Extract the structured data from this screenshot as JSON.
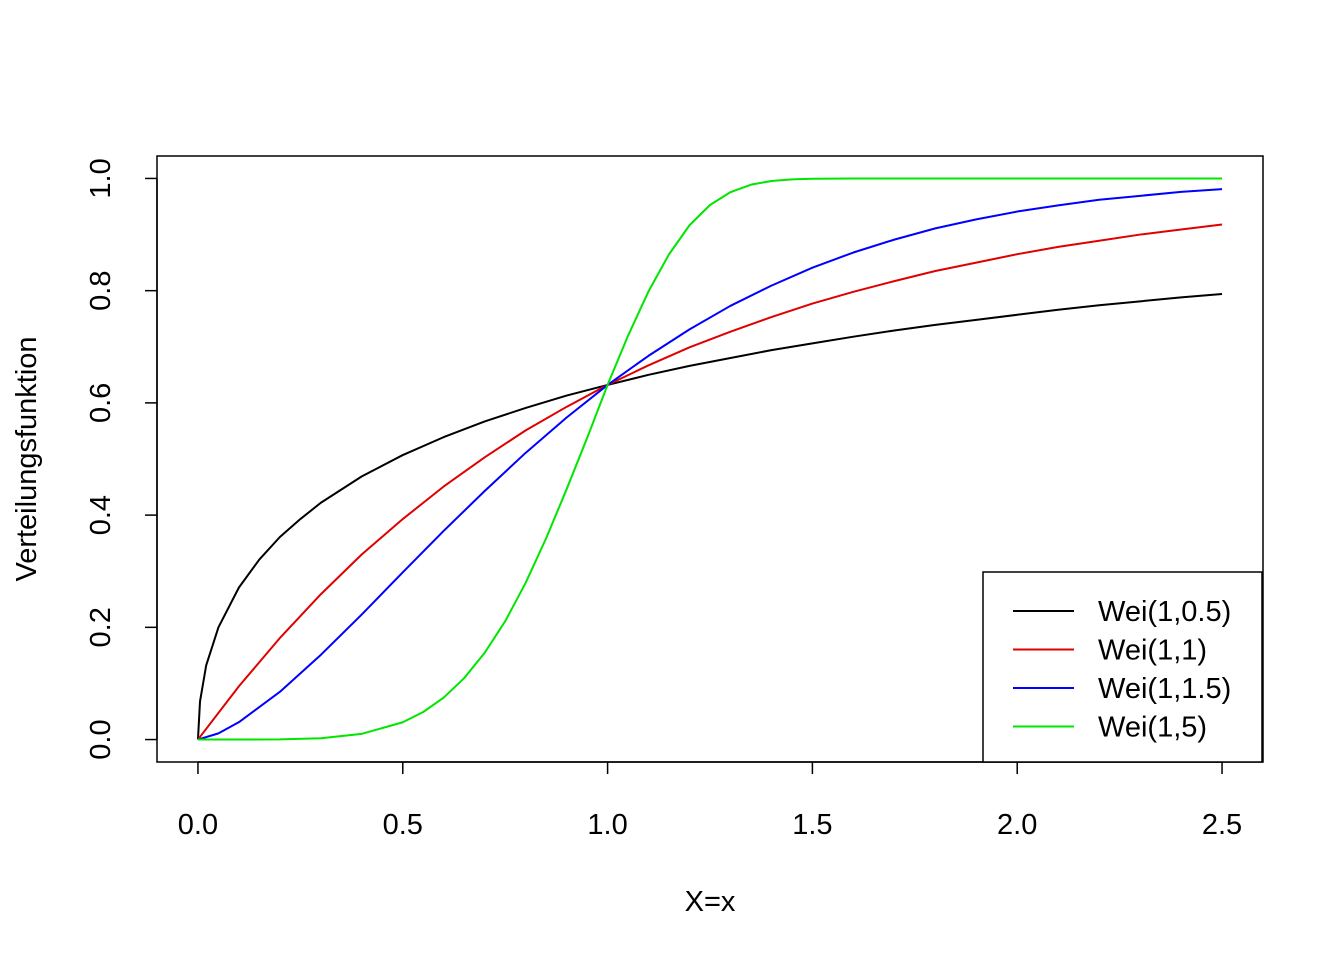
{
  "chart_data": {
    "type": "line",
    "title": "",
    "xlabel": "X=x",
    "ylabel": "Verteilungsfunktion",
    "xlim": [
      -0.1,
      2.6
    ],
    "ylim": [
      -0.04,
      1.04
    ],
    "x_ticks": [
      0.0,
      0.5,
      1.0,
      1.5,
      2.0,
      2.5
    ],
    "x_tick_labels": [
      "0.0",
      "0.5",
      "1.0",
      "1.5",
      "2.0",
      "2.5"
    ],
    "y_ticks": [
      0.0,
      0.2,
      0.4,
      0.6,
      0.8,
      1.0
    ],
    "y_tick_labels": [
      "0.0",
      "0.2",
      "0.4",
      "0.6",
      "0.8",
      "1.0"
    ],
    "grid": false,
    "legend_position": "bottom-right",
    "series": [
      {
        "name": "Wei(1,0.5)",
        "color": "#000000",
        "x": [
          0.0,
          0.005,
          0.02,
          0.05,
          0.1,
          0.15,
          0.2,
          0.25,
          0.3,
          0.4,
          0.5,
          0.6,
          0.7,
          0.8,
          0.9,
          1.0,
          1.1,
          1.2,
          1.3,
          1.4,
          1.5,
          1.6,
          1.7,
          1.8,
          1.9,
          2.0,
          2.1,
          2.2,
          2.3,
          2.4,
          2.5
        ],
        "y": [
          0.0,
          0.068,
          0.132,
          0.2,
          0.271,
          0.321,
          0.361,
          0.393,
          0.422,
          0.469,
          0.507,
          0.539,
          0.567,
          0.591,
          0.613,
          0.632,
          0.65,
          0.666,
          0.68,
          0.694,
          0.706,
          0.718,
          0.729,
          0.739,
          0.748,
          0.757,
          0.766,
          0.774,
          0.781,
          0.788,
          0.794
        ]
      },
      {
        "name": "Wei(1,1)",
        "color": "#df0000",
        "x": [
          0.0,
          0.1,
          0.2,
          0.3,
          0.4,
          0.5,
          0.6,
          0.7,
          0.8,
          0.9,
          1.0,
          1.1,
          1.2,
          1.3,
          1.4,
          1.5,
          1.6,
          1.7,
          1.8,
          1.9,
          2.0,
          2.1,
          2.2,
          2.3,
          2.4,
          2.5
        ],
        "y": [
          0.0,
          0.095,
          0.181,
          0.259,
          0.33,
          0.393,
          0.451,
          0.503,
          0.551,
          0.593,
          0.632,
          0.667,
          0.699,
          0.727,
          0.753,
          0.777,
          0.798,
          0.817,
          0.835,
          0.85,
          0.865,
          0.878,
          0.889,
          0.9,
          0.909,
          0.918
        ]
      },
      {
        "name": "Wei(1,1.5)",
        "color": "#0000ff",
        "x": [
          0.0,
          0.05,
          0.1,
          0.2,
          0.3,
          0.4,
          0.5,
          0.6,
          0.7,
          0.8,
          0.9,
          1.0,
          1.1,
          1.2,
          1.3,
          1.4,
          1.5,
          1.6,
          1.7,
          1.8,
          1.9,
          2.0,
          2.1,
          2.2,
          2.3,
          2.4,
          2.5
        ],
        "y": [
          0.0,
          0.011,
          0.031,
          0.085,
          0.151,
          0.223,
          0.298,
          0.372,
          0.443,
          0.511,
          0.574,
          0.632,
          0.684,
          0.731,
          0.773,
          0.809,
          0.841,
          0.868,
          0.891,
          0.911,
          0.927,
          0.941,
          0.952,
          0.962,
          0.969,
          0.976,
          0.981
        ]
      },
      {
        "name": "Wei(1,5)",
        "color": "#00e600",
        "x": [
          0.0,
          0.1,
          0.2,
          0.3,
          0.4,
          0.5,
          0.55,
          0.6,
          0.65,
          0.7,
          0.75,
          0.8,
          0.85,
          0.9,
          0.95,
          1.0,
          1.05,
          1.1,
          1.15,
          1.2,
          1.25,
          1.3,
          1.35,
          1.4,
          1.45,
          1.5,
          1.6,
          1.8,
          2.0,
          2.5
        ],
        "y": [
          0.0,
          0.0,
          0.0003,
          0.0024,
          0.0102,
          0.0308,
          0.0491,
          0.0748,
          0.1096,
          0.1547,
          0.2109,
          0.2793,
          0.3588,
          0.4462,
          0.5374,
          0.6321,
          0.7198,
          0.7989,
          0.8649,
          0.9166,
          0.9527,
          0.9756,
          0.9889,
          0.9955,
          0.9984,
          0.9995,
          1.0,
          1.0,
          1.0,
          1.0
        ]
      }
    ]
  }
}
